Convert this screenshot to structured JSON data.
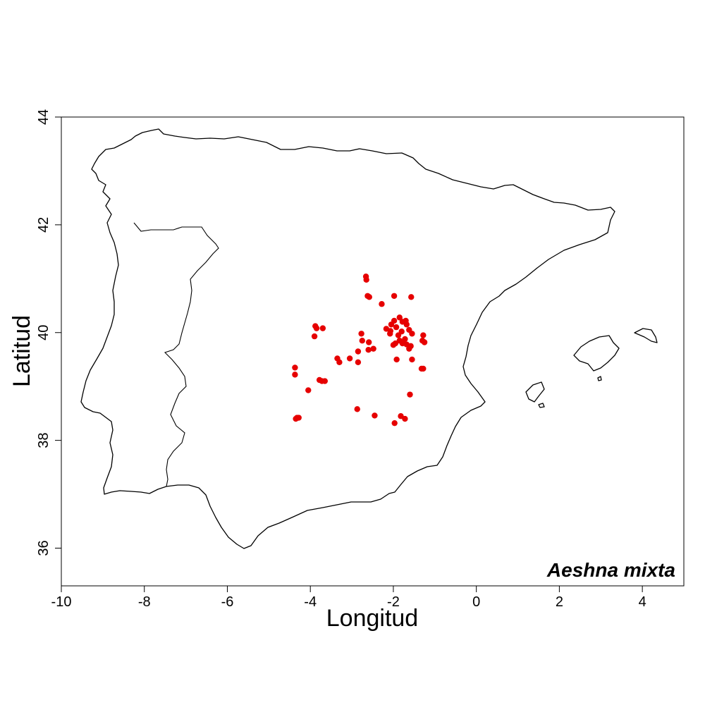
{
  "chart_data": {
    "type": "scatter",
    "title": "",
    "species": "Aeshna mixta",
    "xlabel": "Longitud",
    "ylabel": "Latitud",
    "xlim": [
      -10,
      5
    ],
    "ylim": [
      35.3,
      44
    ],
    "x_ticks": [
      "-10",
      "-8",
      "-6",
      "-4",
      "-2",
      "0",
      "2",
      "4"
    ],
    "y_ticks": [
      "36",
      "38",
      "40",
      "42",
      "44"
    ],
    "point_color": "#e60000",
    "series": [
      {
        "points": [
          [
            -2.66,
            41.04
          ],
          [
            -2.65,
            40.98
          ],
          [
            -2.62,
            40.68
          ],
          [
            -2.58,
            40.66
          ],
          [
            -2.28,
            40.53
          ],
          [
            -1.98,
            40.68
          ],
          [
            -1.57,
            40.66
          ],
          [
            -3.88,
            40.12
          ],
          [
            -3.85,
            40.08
          ],
          [
            -3.7,
            40.08
          ],
          [
            -3.9,
            39.93
          ],
          [
            -2.77,
            39.98
          ],
          [
            -2.75,
            39.85
          ],
          [
            -2.59,
            39.82
          ],
          [
            -2.17,
            40.07
          ],
          [
            -2.07,
            40.03
          ],
          [
            -2.05,
            40.15
          ],
          [
            -1.98,
            40.22
          ],
          [
            -1.93,
            40.1
          ],
          [
            -1.85,
            40.28
          ],
          [
            -1.78,
            40.2
          ],
          [
            -1.7,
            40.22
          ],
          [
            -1.68,
            40.15
          ],
          [
            -1.62,
            40.05
          ],
          [
            -1.55,
            39.98
          ],
          [
            -1.8,
            40.02
          ],
          [
            -1.88,
            39.95
          ],
          [
            -1.95,
            39.8
          ],
          [
            -1.85,
            39.85
          ],
          [
            -1.78,
            39.8
          ],
          [
            -1.72,
            39.88
          ],
          [
            -1.68,
            39.78
          ],
          [
            -1.62,
            39.7
          ],
          [
            -1.58,
            39.75
          ],
          [
            -1.28,
            39.95
          ],
          [
            -1.3,
            39.85
          ],
          [
            -1.25,
            39.82
          ],
          [
            -2.08,
            39.98
          ],
          [
            -2.0,
            39.77
          ],
          [
            -2.48,
            39.7
          ],
          [
            -2.6,
            39.68
          ],
          [
            -2.85,
            39.65
          ],
          [
            -3.05,
            39.52
          ],
          [
            -3.35,
            39.52
          ],
          [
            -3.3,
            39.45
          ],
          [
            -2.85,
            39.45
          ],
          [
            -1.92,
            39.5
          ],
          [
            -1.55,
            39.5
          ],
          [
            -1.32,
            39.33
          ],
          [
            -1.28,
            39.33
          ],
          [
            -4.37,
            39.35
          ],
          [
            -4.37,
            39.22
          ],
          [
            -4.05,
            38.93
          ],
          [
            -3.78,
            39.12
          ],
          [
            -3.72,
            39.1
          ],
          [
            -3.65,
            39.1
          ],
          [
            -4.35,
            38.4
          ],
          [
            -4.32,
            38.42
          ],
          [
            -4.28,
            38.42
          ],
          [
            -2.87,
            38.58
          ],
          [
            -2.45,
            38.46
          ],
          [
            -1.97,
            38.32
          ],
          [
            -1.82,
            38.45
          ],
          [
            -1.72,
            38.4
          ],
          [
            -1.6,
            38.85
          ]
        ]
      }
    ]
  }
}
